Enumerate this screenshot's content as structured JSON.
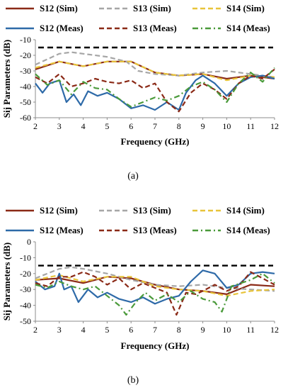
{
  "chart_data": [
    {
      "type": "line",
      "caption": "(a)",
      "xlabel": "Frequency (GHz)",
      "ylabel": "Sij Parameters (dB)",
      "xlim": [
        2,
        12
      ],
      "ylim": [
        -60,
        -10
      ],
      "xticks": [
        2,
        3,
        4,
        5,
        6,
        7,
        8,
        9,
        10,
        11,
        12
      ],
      "yticks": [
        -60,
        -50,
        -40,
        -30,
        -20,
        -10
      ],
      "reference_line": -15,
      "legend_position": "top",
      "series": [
        {
          "name": "S12 (Sim)",
          "color": "#8b2a17",
          "dash": "solid",
          "x": [
            2,
            3,
            4,
            5,
            6,
            7,
            8,
            9,
            10,
            11,
            12
          ],
          "y": [
            -29,
            -24,
            -27,
            -24,
            -24,
            -31,
            -33,
            -32,
            -35,
            -33,
            -35
          ]
        },
        {
          "name": "S13 (Sim)",
          "color": "#a6a6a6",
          "dash": "dashed",
          "x": [
            2,
            3,
            3.5,
            4,
            5,
            5.8,
            6.3,
            7,
            8,
            9,
            10,
            11,
            12
          ],
          "y": [
            -26,
            -19,
            -18,
            -19,
            -21,
            -24,
            -30,
            -32,
            -33,
            -31,
            -30,
            -32,
            -34
          ]
        },
        {
          "name": "S14 (Sim)",
          "color": "#e8c43a",
          "dash": "dashed",
          "x": [
            2,
            3,
            4,
            5,
            6,
            7,
            8,
            9,
            10,
            11,
            12
          ],
          "y": [
            -28,
            -24,
            -27,
            -24,
            -24,
            -31,
            -33,
            -32,
            -36,
            -33,
            -34
          ]
        },
        {
          "name": "S12 (Meas)",
          "color": "#2e6aa8",
          "dash": "solid",
          "x": [
            2,
            2.3,
            2.6,
            3,
            3.3,
            3.6,
            3.9,
            4.2,
            4.6,
            5,
            5.5,
            6,
            6.5,
            7,
            7.5,
            8,
            8.3,
            8.7,
            9,
            9.5,
            10,
            10.5,
            11,
            11.5,
            12
          ],
          "y": [
            -38,
            -44,
            -38,
            -36,
            -50,
            -45,
            -52,
            -43,
            -46,
            -44,
            -48,
            -54,
            -52,
            -55,
            -50,
            -55,
            -44,
            -36,
            -33,
            -38,
            -46,
            -38,
            -34,
            -33,
            -35
          ]
        },
        {
          "name": "S13 (Meas)",
          "color": "#8b2a17",
          "dash": "dashed",
          "x": [
            2,
            2.5,
            3,
            3.5,
            4,
            4.5,
            5,
            5.5,
            6,
            6.5,
            7,
            7.5,
            8,
            8.5,
            9,
            9.5,
            10,
            10.5,
            11,
            11.5,
            12
          ],
          "y": [
            -34,
            -38,
            -32,
            -40,
            -38,
            -35,
            -37,
            -38,
            -36,
            -41,
            -38,
            -50,
            -56,
            -44,
            -38,
            -42,
            -48,
            -38,
            -33,
            -35,
            -29
          ]
        },
        {
          "name": "S14 (Meas)",
          "color": "#4a9a3a",
          "dash": "dashdot",
          "x": [
            2,
            2.5,
            3,
            3.5,
            4,
            4.5,
            5,
            5.5,
            6,
            6.5,
            7,
            7.5,
            8,
            8.5,
            9,
            9.5,
            10,
            10.5,
            11,
            11.5,
            12
          ],
          "y": [
            -32,
            -39,
            -36,
            -45,
            -37,
            -41,
            -42,
            -48,
            -53,
            -50,
            -47,
            -49,
            -46,
            -40,
            -37,
            -42,
            -50,
            -38,
            -31,
            -37,
            -28
          ]
        }
      ]
    },
    {
      "type": "line",
      "caption": "(b)",
      "xlabel": "Frequency (GHz)",
      "ylabel": "Sij Parameters (dB)",
      "xlim": [
        2,
        12
      ],
      "ylim": [
        -50,
        0
      ],
      "xticks": [
        2,
        3,
        4,
        5,
        6,
        7,
        8,
        9,
        10,
        11,
        12
      ],
      "yticks": [
        -50,
        -40,
        -30,
        -20,
        -10,
        0
      ],
      "reference_line": -15,
      "legend_position": "top",
      "series": [
        {
          "name": "S12 (Sim)",
          "color": "#8b2a17",
          "dash": "solid",
          "x": [
            2,
            3,
            4,
            5,
            6,
            7,
            8,
            9,
            10,
            11,
            12
          ],
          "y": [
            -24,
            -23,
            -26,
            -22,
            -23,
            -27,
            -30,
            -31,
            -33,
            -27,
            -28
          ]
        },
        {
          "name": "S13 (Sim)",
          "color": "#a6a6a6",
          "dash": "dashed",
          "x": [
            2,
            3,
            3.5,
            4,
            5,
            6,
            7,
            8,
            9,
            10,
            11,
            12
          ],
          "y": [
            -23,
            -17,
            -16,
            -17,
            -20,
            -24,
            -27,
            -28,
            -27,
            -29,
            -30,
            -31
          ]
        },
        {
          "name": "S14 (Sim)",
          "color": "#e8c43a",
          "dash": "dashed",
          "x": [
            2,
            3,
            4,
            5,
            6,
            7,
            8,
            9,
            10,
            11,
            12
          ],
          "y": [
            -24,
            -21,
            -25,
            -22,
            -22,
            -28,
            -30,
            -31,
            -34,
            -31,
            -30
          ]
        },
        {
          "name": "S12 (Meas)",
          "color": "#2e6aa8",
          "dash": "solid",
          "x": [
            2,
            2.4,
            2.8,
            3,
            3.2,
            3.5,
            3.8,
            4.2,
            4.6,
            5,
            5.5,
            6,
            6.5,
            7,
            7.5,
            8,
            8.5,
            9,
            9.5,
            10,
            10.5,
            11,
            11.5,
            12
          ],
          "y": [
            -25,
            -30,
            -28,
            -20,
            -30,
            -28,
            -38,
            -30,
            -35,
            -32,
            -36,
            -38,
            -35,
            -39,
            -36,
            -34,
            -25,
            -18,
            -20,
            -29,
            -27,
            -20,
            -19,
            -20
          ]
        },
        {
          "name": "S13 (Meas)",
          "color": "#8b2a17",
          "dash": "dashed",
          "x": [
            2,
            2.5,
            3,
            3.5,
            4,
            4.5,
            5,
            5.5,
            6,
            6.5,
            7,
            7.5,
            7.9,
            8.3,
            8.7,
            9,
            9.5,
            10,
            10.5,
            11,
            11.5,
            12
          ],
          "y": [
            -26,
            -28,
            -22,
            -22,
            -19,
            -22,
            -27,
            -23,
            -30,
            -26,
            -29,
            -32,
            -46,
            -32,
            -33,
            -31,
            -27,
            -31,
            -28,
            -19,
            -23,
            -27
          ]
        },
        {
          "name": "S14 (Meas)",
          "color": "#4a9a3a",
          "dash": "dashdot",
          "x": [
            2,
            2.5,
            3,
            3.5,
            4,
            4.5,
            5,
            5.5,
            5.8,
            6.2,
            6.6,
            7,
            7.5,
            8,
            8.5,
            9,
            9.5,
            9.8,
            10.2,
            10.6,
            11,
            11.5,
            12
          ],
          "y": [
            -27,
            -29,
            -25,
            -28,
            -30,
            -28,
            -34,
            -40,
            -46,
            -38,
            -32,
            -37,
            -33,
            -38,
            -31,
            -36,
            -38,
            -44,
            -28,
            -26,
            -24,
            -20,
            -26
          ]
        }
      ]
    }
  ]
}
